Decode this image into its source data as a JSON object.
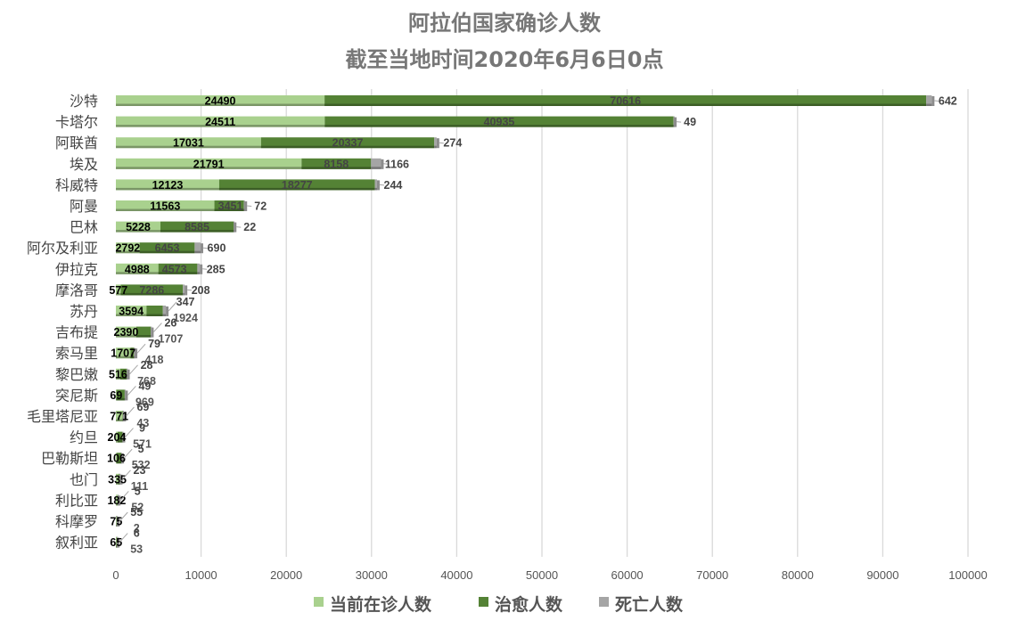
{
  "chart_data": {
    "type": "bar",
    "orientation": "horizontal",
    "stacked": true,
    "title": "阿拉伯国家确诊人数",
    "subtitle": "截至当地时间2020年6月6日0点",
    "xlim": [
      0,
      100000
    ],
    "xticks": [
      "0",
      "10000",
      "20000",
      "30000",
      "40000",
      "50000",
      "60000",
      "70000",
      "80000",
      "90000",
      "100000"
    ],
    "grid": "vertical",
    "legend_position": "bottom",
    "categories": [
      "沙特",
      "卡塔尔",
      "阿联酋",
      "埃及",
      "科威特",
      "阿曼",
      "巴林",
      "阿尔及利亚",
      "伊拉克",
      "摩洛哥",
      "苏丹",
      "吉布提",
      "索马里",
      "黎巴嫩",
      "突尼斯",
      "毛里塔尼亚",
      "约旦",
      "巴勒斯坦",
      "也门",
      "利比亚",
      "科摩罗",
      "叙利亚"
    ],
    "series": [
      {
        "name": "当前在诊人数",
        "color": "#a9d18e",
        "values": [
          24490,
          24511,
          17031,
          21791,
          12123,
          11563,
          5228,
          2792,
          4988,
          577,
          3594,
          2390,
          1707,
          516,
          69,
          771,
          204,
          106,
          335,
          182,
          75,
          65
        ]
      },
      {
        "name": "治愈人数",
        "color": "#548235",
        "values": [
          70616,
          40935,
          20337,
          8158,
          18277,
          3451,
          8585,
          6453,
          4573,
          7286,
          1924,
          1707,
          418,
          768,
          969,
          43,
          571,
          532,
          111,
          52,
          2,
          53
        ]
      },
      {
        "name": "死亡人数",
        "color": "#a5a5a5",
        "values": [
          642,
          49,
          274,
          1166,
          244,
          72,
          22,
          690,
          285,
          208,
          347,
          26,
          79,
          28,
          49,
          69,
          9,
          5,
          23,
          5,
          55,
          6
        ]
      }
    ]
  }
}
